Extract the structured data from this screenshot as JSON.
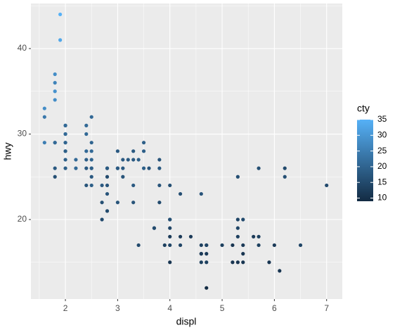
{
  "chart_data": {
    "type": "scatter",
    "x_label": "displ",
    "y_label": "hwy",
    "color_label": "cty",
    "x": [
      1.8,
      1.8,
      2.0,
      2.0,
      2.8,
      2.8,
      3.1,
      1.8,
      1.8,
      2.0,
      2.0,
      2.8,
      3.1,
      4.2,
      5.3,
      5.3,
      5.7,
      6.0,
      5.7,
      6.2,
      7.0,
      5.3,
      6.5,
      6.2,
      2.4,
      3.1,
      3.5,
      3.6,
      3.3,
      3.8,
      4.0,
      3.3,
      3.8,
      4.7,
      4.7,
      5.2,
      3.9,
      4.7,
      5.9,
      3.7,
      5.2,
      4.0,
      4.6,
      5.4,
      4.0,
      4.6,
      5.4,
      3.8,
      4.6,
      5.4,
      4.2,
      4.6,
      1.6,
      1.6,
      1.6,
      1.8,
      1.8,
      1.8,
      1.8,
      2.0,
      2.4,
      2.4,
      2.5,
      2.0,
      2.0,
      2.7,
      2.0,
      2.4,
      3.0,
      3.7,
      4.0,
      4.7,
      5.7,
      6.1,
      4.0,
      4.2,
      4.4,
      5.4,
      2.5,
      3.5,
      3.0,
      5.6,
      3.8,
      5.3,
      3.4,
      2.5,
      2.5,
      2.5,
      2.5,
      2.7,
      3.4,
      4.0,
      2.2,
      2.4,
      3.0,
      3.3,
      2.7,
      4.7,
      2.2,
      3.0,
      1.9,
      1.9,
      2.5,
      2.8,
      2.0,
      2.5,
      2.8,
      5.0,
      3.5,
      3.3,
      2.0,
      3.2,
      2.4,
      4.0,
      4.6,
      5.3,
      2.8
    ],
    "values": [
      29,
      29,
      31,
      30,
      26,
      26,
      27,
      26,
      25,
      28,
      27,
      25,
      25,
      23,
      20,
      15,
      17,
      17,
      26,
      26,
      24,
      19,
      17,
      25,
      27,
      26,
      29,
      26,
      24,
      24,
      24,
      22,
      22,
      17,
      12,
      17,
      17,
      16,
      15,
      19,
      15,
      17,
      15,
      15,
      19,
      17,
      17,
      26,
      23,
      20,
      17,
      16,
      33,
      32,
      29,
      36,
      37,
      35,
      34,
      29,
      26,
      28,
      26,
      31,
      26,
      24,
      28,
      30,
      22,
      19,
      20,
      17,
      18,
      14,
      15,
      18,
      18,
      16,
      28,
      26,
      26,
      18,
      27,
      25,
      27,
      26,
      25,
      27,
      24,
      20,
      17,
      20,
      26,
      31,
      28,
      27,
      22,
      15,
      27,
      26,
      44,
      41,
      29,
      23,
      29,
      32,
      24,
      17,
      28,
      28,
      30,
      27,
      24,
      18,
      16,
      18,
      21
    ],
    "color_values": [
      18,
      21,
      20,
      21,
      16,
      18,
      18,
      18,
      16,
      20,
      19,
      15,
      17,
      16,
      14,
      11,
      13,
      12,
      16,
      15,
      15,
      14,
      14,
      16,
      19,
      18,
      19,
      17,
      18,
      17,
      16,
      17,
      15,
      14,
      9,
      11,
      13,
      12,
      11,
      15,
      11,
      14,
      13,
      11,
      14,
      13,
      12,
      18,
      17,
      15,
      14,
      12,
      28,
      24,
      25,
      26,
      28,
      29,
      28,
      21,
      18,
      21,
      19,
      21,
      19,
      18,
      19,
      21,
      17,
      15,
      15,
      14,
      13,
      11,
      11,
      12,
      12,
      11,
      21,
      19,
      19,
      12,
      17,
      16,
      19,
      19,
      18,
      20,
      19,
      15,
      15,
      16,
      21,
      21,
      18,
      18,
      16,
      13,
      21,
      18,
      35,
      33,
      20,
      17,
      20,
      21,
      17,
      13,
      19,
      18,
      21,
      18,
      17,
      12,
      12,
      13,
      15
    ],
    "xlim": [
      1.34,
      7.3
    ],
    "ylim": [
      10.7,
      45.27
    ],
    "xticks": [
      2,
      3,
      4,
      5,
      6,
      7
    ],
    "yticks": [
      20,
      30,
      40
    ],
    "clim": [
      9,
      35
    ],
    "cticks": [
      10,
      15,
      20,
      25,
      30,
      35
    ],
    "color_low": "#132B43",
    "color_high": "#56B1F7",
    "panel_color": "#ebebeb",
    "grid": true
  }
}
